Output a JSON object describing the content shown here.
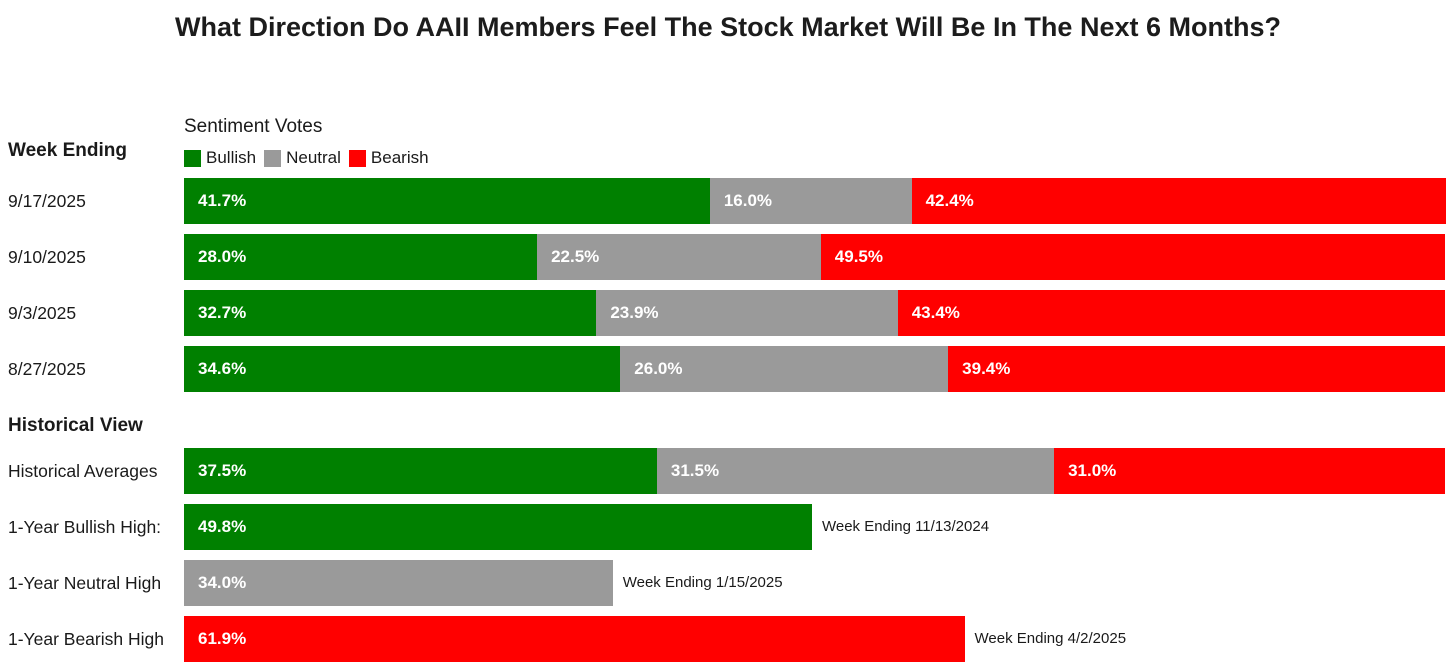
{
  "colors": {
    "bullish": "#008000",
    "neutral": "#9a9a9a",
    "bearish": "#ff0000"
  },
  "chart_data": {
    "type": "bar",
    "stacked": true,
    "orientation": "horizontal",
    "title": "What Direction Do AAII Members Feel The Stock Market Will Be In The Next 6 Months?",
    "legend": {
      "title": "Sentiment Votes",
      "placement": "top-left",
      "items": [
        {
          "key": "bullish",
          "label": "Bullish"
        },
        {
          "key": "neutral",
          "label": "Neutral"
        },
        {
          "key": "bearish",
          "label": "Bearish"
        }
      ]
    },
    "sections": [
      {
        "header": "Week Ending",
        "rows": [
          {
            "label": "9/17/2025",
            "bullish": 41.7,
            "neutral": 16.0,
            "bearish": 42.4,
            "labels": {
              "bullish": "41.7%",
              "neutral": "16.0%",
              "bearish": "42.4%"
            }
          },
          {
            "label": "9/10/2025",
            "bullish": 28.0,
            "neutral": 22.5,
            "bearish": 49.5,
            "labels": {
              "bullish": "28.0%",
              "neutral": "22.5%",
              "bearish": "49.5%"
            }
          },
          {
            "label": "9/3/2025",
            "bullish": 32.7,
            "neutral": 23.9,
            "bearish": 43.4,
            "labels": {
              "bullish": "32.7%",
              "neutral": "23.9%",
              "bearish": "43.4%"
            }
          },
          {
            "label": "8/27/2025",
            "bullish": 34.6,
            "neutral": 26.0,
            "bearish": 39.4,
            "labels": {
              "bullish": "34.6%",
              "neutral": "26.0%",
              "bearish": "39.4%"
            }
          }
        ]
      },
      {
        "header": "Historical View",
        "rows": [
          {
            "label": "Historical Averages",
            "bullish": 37.5,
            "neutral": 31.5,
            "bearish": 31.0,
            "labels": {
              "bullish": "37.5%",
              "neutral": "31.5%",
              "bearish": "31.0%"
            }
          },
          {
            "label": "1-Year Bullish High:",
            "bullish": 49.8,
            "labels": {
              "bullish": "49.8%"
            },
            "note": "Week Ending 11/13/2024"
          },
          {
            "label": "1-Year Neutral High",
            "neutral": 34.0,
            "labels": {
              "neutral": "34.0%"
            },
            "note": "Week Ending 1/15/2025"
          },
          {
            "label": "1-Year Bearish High",
            "bearish": 61.9,
            "labels": {
              "bearish": "61.9%"
            },
            "note": "Week Ending 4/2/2025"
          }
        ]
      }
    ],
    "xlim": [
      0,
      100
    ],
    "grid": false
  }
}
